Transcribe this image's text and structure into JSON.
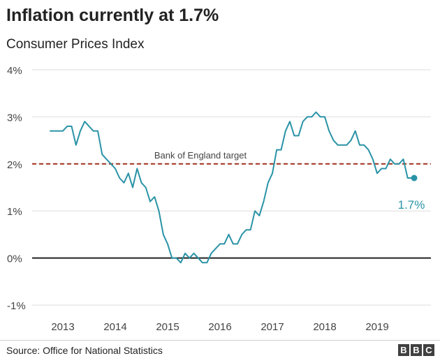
{
  "header": {
    "title": "Inflation currently at 1.7%",
    "subtitle": "Consumer Prices Index"
  },
  "footer": {
    "source": "Source: Office for National Statistics",
    "logo_letters": [
      "B",
      "B",
      "C"
    ]
  },
  "colors": {
    "series": "#2a93a6",
    "target": "#a0311f",
    "zero_line": "#222222",
    "grid": "#dddddd"
  },
  "chart_data": {
    "type": "line",
    "title": "Inflation currently at 1.7%",
    "subtitle": "Consumer Prices Index",
    "ylim": [
      -1,
      4
    ],
    "y_ticks": [
      -1,
      0,
      1,
      2,
      3,
      4
    ],
    "y_tick_labels": [
      "-1%",
      "0%",
      "1%",
      "2%",
      "3%",
      "4%"
    ],
    "x_ticks": [
      2013,
      2014,
      2015,
      2016,
      2017,
      2018,
      2019
    ],
    "x_tick_labels": [
      "2013",
      "2014",
      "2015",
      "2016",
      "2017",
      "2018",
      "2019"
    ],
    "grid": true,
    "reference_line": {
      "label": "Bank of England target",
      "value": 2
    },
    "end_label": "1.7%",
    "series": [
      {
        "x_start": "2012-10",
        "x_end": "2019-09",
        "frequency": "monthly",
        "values": [
          2.7,
          2.7,
          2.7,
          2.7,
          2.8,
          2.8,
          2.4,
          2.7,
          2.9,
          2.8,
          2.7,
          2.7,
          2.2,
          2.1,
          2.0,
          1.9,
          1.7,
          1.6,
          1.8,
          1.5,
          1.9,
          1.6,
          1.5,
          1.2,
          1.3,
          1.0,
          0.5,
          0.3,
          0.0,
          0.0,
          -0.1,
          0.1,
          0.0,
          0.1,
          0.0,
          -0.1,
          -0.1,
          0.1,
          0.2,
          0.3,
          0.3,
          0.5,
          0.3,
          0.3,
          0.5,
          0.6,
          0.6,
          1.0,
          0.9,
          1.2,
          1.6,
          1.8,
          2.3,
          2.3,
          2.7,
          2.9,
          2.6,
          2.6,
          2.9,
          3.0,
          3.0,
          3.1,
          3.0,
          3.0,
          2.7,
          2.5,
          2.4,
          2.4,
          2.4,
          2.5,
          2.7,
          2.4,
          2.4,
          2.3,
          2.1,
          1.8,
          1.9,
          1.9,
          2.1,
          2.0,
          2.0,
          2.1,
          1.7,
          1.7
        ]
      }
    ]
  }
}
